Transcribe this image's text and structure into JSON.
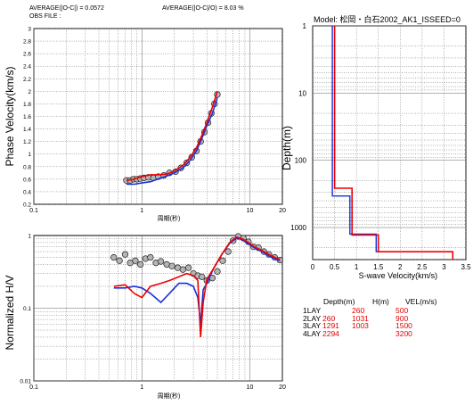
{
  "header": {
    "avg_abs": "AVERAGE(|O-C|) = 0.0572",
    "avg_rel": "AVERAGE(|O-C|/O) = 8.03 %",
    "obs_file": "OBS FILE :"
  },
  "colors": {
    "observed_fill": "#b4b4b4",
    "model_red": "#ee0000",
    "model_blue": "#1a30d8",
    "grid": "#666666"
  },
  "chart_data": [
    {
      "type": "scatter",
      "title": "",
      "ylabel": "Phase Velocity(km/s)",
      "xlabel": "周期(秒)",
      "xscale": "log",
      "xlim": [
        0.1,
        20
      ],
      "ylim": [
        0.2,
        3.0
      ],
      "xticklabels": [
        "0.1",
        "1",
        "10",
        "20"
      ],
      "yticklabels": [
        "0.2",
        "0.4",
        "0.6",
        "0.8",
        "1",
        "1.2",
        "1.4",
        "1.6",
        "1.8",
        "2",
        "2.2",
        "2.4",
        "2.6",
        "2.8",
        "3"
      ],
      "grid": true,
      "series": [
        {
          "values_x": [
            0.72,
            0.78,
            0.84,
            0.9,
            0.97,
            1.05,
            1.15,
            1.28,
            1.42,
            1.6,
            1.8,
            2.05,
            2.3,
            2.6,
            2.9,
            3.2,
            3.5,
            3.8,
            4.1,
            4.4,
            4.7,
            5.0
          ],
          "values_y": [
            0.58,
            0.58,
            0.6,
            0.6,
            0.61,
            0.62,
            0.63,
            0.62,
            0.64,
            0.66,
            0.7,
            0.72,
            0.78,
            0.86,
            0.95,
            1.05,
            1.2,
            1.35,
            1.5,
            1.65,
            1.8,
            1.95
          ]
        },
        {
          "values_x": [
            0.72,
            0.85,
            1.0,
            1.2,
            1.4,
            1.7,
            2.0,
            2.4,
            2.8,
            3.2,
            3.6,
            4.0,
            4.5,
            5.0
          ],
          "values_y": [
            0.58,
            0.6,
            0.64,
            0.67,
            0.67,
            0.68,
            0.73,
            0.82,
            0.95,
            1.1,
            1.3,
            1.5,
            1.75,
            2.0
          ]
        },
        {
          "values_x": [
            0.72,
            0.85,
            1.0,
            1.2,
            1.4,
            1.7,
            2.0,
            2.4,
            2.8,
            3.2,
            3.6,
            4.0,
            4.5,
            5.0
          ],
          "values_y": [
            0.52,
            0.52,
            0.54,
            0.56,
            0.6,
            0.65,
            0.7,
            0.78,
            0.9,
            1.05,
            1.25,
            1.45,
            1.65,
            1.9
          ]
        }
      ]
    },
    {
      "type": "scatter",
      "title": "",
      "ylabel": "Normalized H/V",
      "xlabel": "周期(秒)",
      "xscale": "log",
      "yscale": "log",
      "xlim": [
        0.1,
        20
      ],
      "ylim": [
        0.01,
        1
      ],
      "xticklabels": [
        "0.1",
        "1",
        "10",
        "20"
      ],
      "yticklabels": [
        "0.01",
        "0.1",
        "1"
      ],
      "grid": true,
      "series": [
        {
          "values_x": [
            0.55,
            0.62,
            0.7,
            0.78,
            0.87,
            0.97,
            1.08,
            1.2,
            1.35,
            1.5,
            1.7,
            1.9,
            2.15,
            2.4,
            2.7,
            3.0,
            3.3,
            3.6,
            4.0,
            4.5,
            5.0,
            5.6,
            6.3,
            7.0,
            7.8,
            8.7,
            9.7,
            10.8,
            12,
            13.5,
            15,
            17,
            19
          ],
          "values_y": [
            0.5,
            0.45,
            0.55,
            0.42,
            0.45,
            0.4,
            0.48,
            0.5,
            0.42,
            0.44,
            0.4,
            0.38,
            0.36,
            0.34,
            0.36,
            0.3,
            0.28,
            0.27,
            0.24,
            0.26,
            0.32,
            0.45,
            0.6,
            0.85,
            0.97,
            0.92,
            0.82,
            0.7,
            0.68,
            0.6,
            0.55,
            0.5,
            0.46
          ]
        },
        {
          "values_x": [
            0.55,
            0.7,
            0.85,
            1.0,
            1.2,
            1.5,
            1.8,
            2.2,
            2.6,
            3.0,
            3.3,
            3.5,
            3.7,
            4.0,
            4.6,
            5.5,
            6.5,
            7.5,
            8.5,
            9.5,
            11,
            13,
            15,
            17,
            19
          ],
          "values_y": [
            0.2,
            0.21,
            0.16,
            0.14,
            0.2,
            0.22,
            0.24,
            0.27,
            0.3,
            0.28,
            0.24,
            0.04,
            0.12,
            0.25,
            0.35,
            0.55,
            0.8,
            0.95,
            0.9,
            0.82,
            0.7,
            0.62,
            0.55,
            0.5,
            0.47
          ]
        },
        {
          "values_x": [
            0.55,
            0.7,
            0.85,
            1.0,
            1.2,
            1.5,
            1.8,
            2.2,
            2.6,
            3.0,
            3.3,
            3.5,
            3.7,
            4.0,
            4.6,
            5.5,
            6.5,
            7.5,
            8.5,
            9.5,
            11,
            13,
            15,
            17,
            19
          ],
          "values_y": [
            0.19,
            0.19,
            0.2,
            0.19,
            0.16,
            0.12,
            0.16,
            0.22,
            0.22,
            0.2,
            0.14,
            0.06,
            0.18,
            0.22,
            0.35,
            0.55,
            0.78,
            0.92,
            0.88,
            0.78,
            0.68,
            0.6,
            0.52,
            0.48,
            0.45
          ]
        }
      ]
    },
    {
      "type": "line",
      "title": "Model: 松岡・白石2002_AK1_ISSEED=0",
      "xlabel": "S-wave Velocity(km/s)",
      "ylabel": "Depth(m)",
      "yscale": "log",
      "yinverted": true,
      "xlim": [
        0,
        3.5
      ],
      "ylim": [
        1,
        3000
      ],
      "xticklabels": [
        "0",
        "0.5",
        "1",
        "1.5",
        "2",
        "2.5",
        "3",
        "3.5"
      ],
      "yticklabels": [
        "1",
        "10",
        "100",
        "1000"
      ],
      "grid": true,
      "series": [
        {
          "name": "red model",
          "values_x": [
            0.5,
            0.5,
            0.9,
            0.9,
            1.5,
            1.5,
            3.2,
            3.2
          ],
          "values_y": [
            1,
            260,
            260,
            1291,
            1291,
            2294,
            2294,
            3000
          ]
        },
        {
          "name": "blue model",
          "values_x": [
            0.45,
            0.45,
            0.85,
            0.85,
            1.45,
            1.45,
            3.2,
            3.2
          ],
          "values_y": [
            1,
            340,
            340,
            1250,
            1250,
            2294,
            2294,
            3000
          ]
        }
      ]
    }
  ],
  "layers": {
    "headers": [
      "Depth(m)",
      "H(m)",
      "VEL(m/s)"
    ],
    "rows": [
      {
        "name": "1LAY",
        "depth": "",
        "h": "260",
        "vel": "500"
      },
      {
        "name": "2LAY",
        "depth": "260",
        "h": "1031",
        "vel": "900"
      },
      {
        "name": "3LAY",
        "depth": "1291",
        "h": "1003",
        "vel": "1500"
      },
      {
        "name": "4LAY",
        "depth": "2294",
        "h": "",
        "vel": "3200"
      }
    ]
  }
}
